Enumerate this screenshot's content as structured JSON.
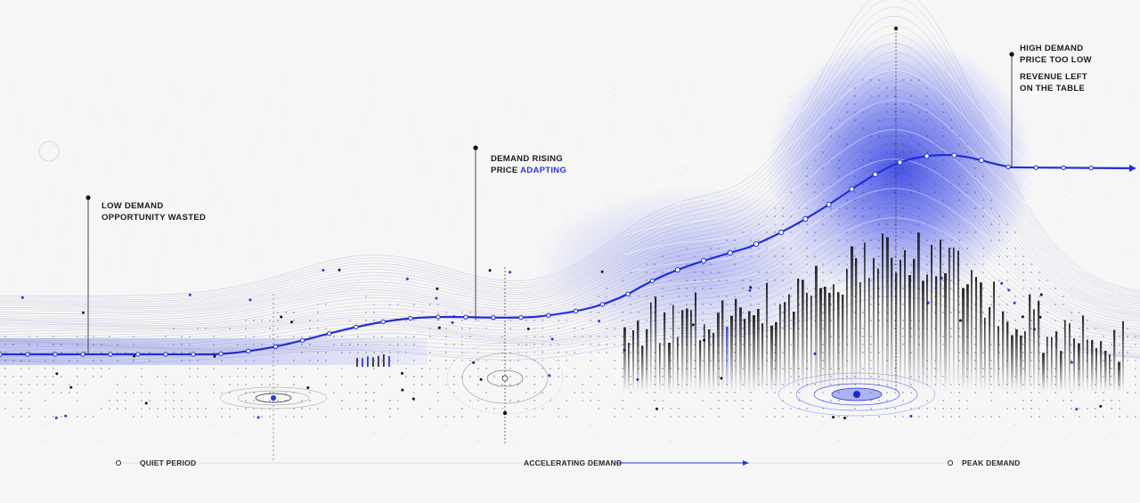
{
  "annotations": {
    "low": {
      "line1": "LOW DEMAND",
      "line2": "OPPORTUNITY WASTED"
    },
    "rising": {
      "line1": "DEMAND RISING",
      "line2_prefix": "PRICE ",
      "line2_accent": "ADAPTING"
    },
    "high": {
      "line1": "HIGH DEMAND",
      "line2": "PRICE TOO LOW",
      "line3": "REVENUE LEFT",
      "line4": "ON THE TABLE"
    }
  },
  "phases": {
    "quiet": "QUIET PERIOD",
    "accelerating": "ACCELERATING DEMAND",
    "peak": "PEAK DEMAND"
  },
  "colors": {
    "accent": "#2a38e0",
    "ink": "#1b1b1f",
    "background": "#f6f6f7"
  }
}
